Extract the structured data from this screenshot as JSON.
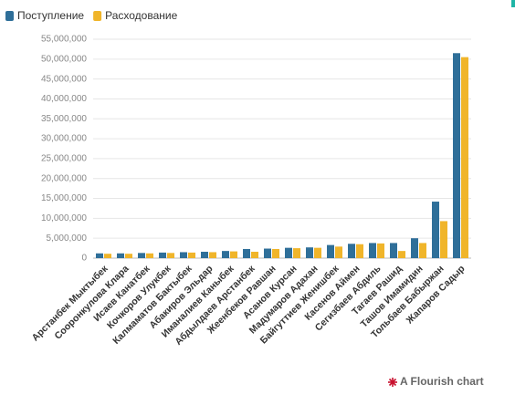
{
  "chart_data": {
    "type": "bar",
    "categories": [
      "Арстанбек Мыктыбек",
      "Сооронкулова Клара",
      "Исаев Канатбек",
      "Кочкоров Улукбек",
      "Калмаматов Бактыбек",
      "Абакиров Эльдар",
      "Иманалиев Каныбек",
      "Абдылдаев Арстанбек",
      "Жеенбеков Равшан",
      "Асанов Курсан",
      "Мадумаров Адахан",
      "Байгуттиев Женишбек",
      "Касенов Аймен",
      "Сегизбаев Абдиль",
      "Тагаев Рашид",
      "Ташов Имамидин",
      "Тольбаев Бабыржан",
      "Жапаров Садыр"
    ],
    "series": [
      {
        "name": "Поступление",
        "color": "#2f6f99",
        "values": [
          1200000,
          1200000,
          1300000,
          1400000,
          1500000,
          1600000,
          1800000,
          2300000,
          2400000,
          2600000,
          2700000,
          3300000,
          3600000,
          3800000,
          3800000,
          5000000,
          14200000,
          51500000
        ]
      },
      {
        "name": "Расходование",
        "color": "#f0b52a",
        "values": [
          1100000,
          1100000,
          1200000,
          1300000,
          1400000,
          1500000,
          1700000,
          1600000,
          2300000,
          2500000,
          2600000,
          2900000,
          3500000,
          3700000,
          1800000,
          3800000,
          9300000,
          50500000
        ]
      }
    ],
    "ylim": [
      0,
      55000000
    ],
    "yticks": [
      0,
      {
        "value": 5000000,
        "label": "5,000,000"
      },
      {
        "value": 10000000,
        "label": "10,000,000"
      },
      {
        "value": 15000000,
        "label": "15,000,000"
      },
      {
        "value": 20000000,
        "label": "20,000,000"
      },
      {
        "value": 25000000,
        "label": "25,000,000"
      },
      {
        "value": 30000000,
        "label": "30,000,000"
      },
      {
        "value": 35000000,
        "label": "35,000,000"
      },
      {
        "value": 40000000,
        "label": "40,000,000"
      },
      {
        "value": 45000000,
        "label": "45,000,000"
      },
      {
        "value": 50000000,
        "label": "50,000,000"
      },
      {
        "value": 55000000,
        "label": "55,000,000"
      }
    ],
    "grid": true,
    "legend": "top-left",
    "credit": "A Flourish chart"
  }
}
